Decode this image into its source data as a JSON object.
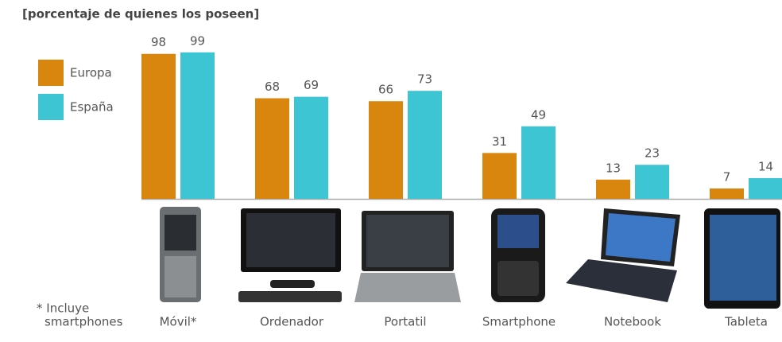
{
  "chart_data": {
    "type": "bar",
    "title": "[porcentaje de quienes los poseen]",
    "categories": [
      "Móvil*",
      "Ordenador",
      "Portatil",
      "Smartphone",
      "Notebook",
      "Tableta"
    ],
    "series": [
      {
        "name": "Europa",
        "color": "#d9860f",
        "values": [
          98,
          68,
          66,
          31,
          13,
          7
        ]
      },
      {
        "name": "España",
        "color": "#3ec5d3",
        "values": [
          99,
          69,
          73,
          49,
          23,
          14
        ]
      }
    ],
    "legend": "left",
    "footnote": [
      "* Incluye",
      "smartphones"
    ]
  }
}
